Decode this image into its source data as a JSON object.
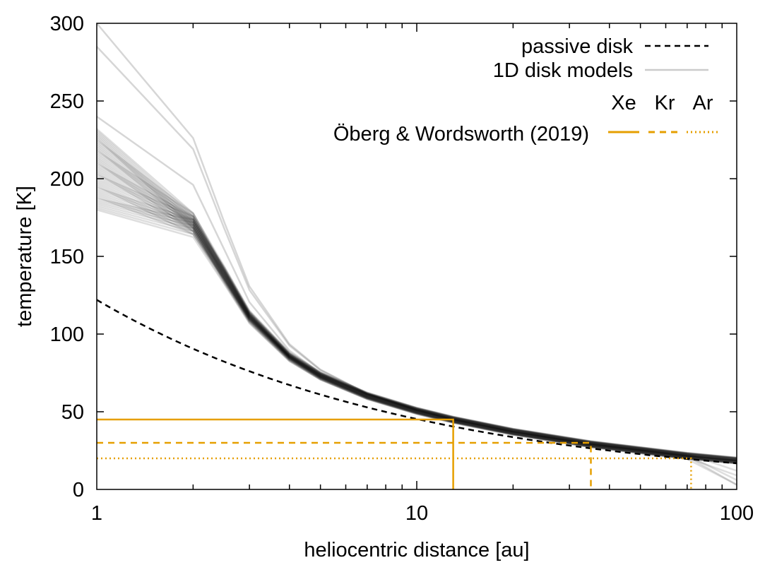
{
  "chart_data": {
    "type": "line",
    "xscale": "log",
    "xlabel": "heliocentric distance [au]",
    "ylabel": "temperature [K]",
    "xlim": [
      1,
      100
    ],
    "ylim": [
      0,
      300
    ],
    "xticks": [
      1,
      10,
      100
    ],
    "xtick_labels": [
      "1",
      "10",
      "100"
    ],
    "yticks": [
      0,
      50,
      100,
      150,
      200,
      250,
      300
    ],
    "ytick_labels": [
      "0",
      "50",
      "100",
      "150",
      "200",
      "250",
      "300"
    ],
    "grid": false,
    "legend": {
      "position": "top-right",
      "passive_label": "passive disk",
      "models_label": "1D disk models",
      "species_header": [
        "Xe",
        "Kr",
        "Ar"
      ],
      "oberg_label": "Öberg & Wordsworth (2019)"
    },
    "colors": {
      "passive": "#000000",
      "models": "#000000",
      "oberg": "#e69f00"
    },
    "passive_disk": {
      "name": "passive disk",
      "formula": "T = 122 * r^-0.43",
      "T0": 122,
      "exponent": -0.43
    },
    "disk_models": {
      "name": "1D disk models",
      "count": 45,
      "x": [
        1,
        1.4,
        2,
        2.5,
        3,
        4,
        5,
        7,
        10,
        13,
        20,
        35,
        70,
        100
      ],
      "T_inner_range": [
        180,
        232
      ],
      "kink_T_range": [
        160,
        172
      ],
      "outliers": [
        {
          "T1": 300,
          "T_kink": 216
        },
        {
          "T1": 285,
          "T_kink": 210
        },
        {
          "T1": 240,
          "T_kink": 190
        }
      ]
    },
    "oberg_wordsworth": [
      {
        "species": "Xe",
        "temperature": 45,
        "distance": 13,
        "style": "solid"
      },
      {
        "species": "Kr",
        "temperature": 30,
        "distance": 35,
        "style": "dashed"
      },
      {
        "species": "Ar",
        "temperature": 20,
        "distance": 72,
        "style": "dotted"
      }
    ]
  }
}
